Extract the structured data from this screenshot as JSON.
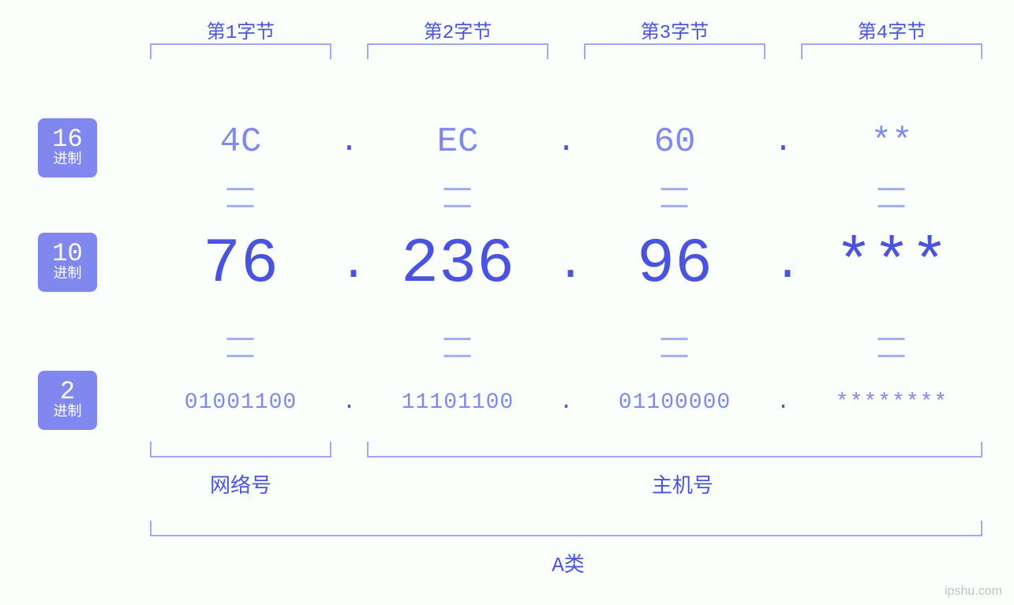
{
  "colors": {
    "background": "#fafffc",
    "primary": "#4a52e0",
    "secondary": "#8088f0",
    "bracket": "#a0a8f0",
    "badge_bg": "#8088f0",
    "badge_text": "#ffffff",
    "watermark": "#c0c0c0"
  },
  "typography": {
    "font_family": "monospace",
    "byte_label_fontsize": 24,
    "hex_fontsize": 44,
    "dec_fontsize": 80,
    "bin_fontsize": 28,
    "badge_number_fontsize": 32,
    "badge_text_fontsize": 18,
    "bottom_label_fontsize": 26,
    "equals_fontsize": 36
  },
  "byte_labels": [
    "第1字节",
    "第2字节",
    "第3字节",
    "第4字节"
  ],
  "rows": {
    "hex": {
      "badge_number": "16",
      "badge_text": "进制",
      "values": [
        "4C",
        "EC",
        "60",
        "**"
      ],
      "separator": "."
    },
    "dec": {
      "badge_number": "10",
      "badge_text": "进制",
      "values": [
        "76",
        "236",
        "96",
        "***"
      ],
      "separator": "."
    },
    "bin": {
      "badge_number": "2",
      "badge_text": "进制",
      "values": [
        "01001100",
        "11101100",
        "01100000",
        "********"
      ],
      "separator": "."
    }
  },
  "equals_symbol": "||",
  "bottom": {
    "network_label": "网络号",
    "network_span_bytes": [
      1
    ],
    "host_label": "主机号",
    "host_span_bytes": [
      2,
      3,
      4
    ],
    "class_label": "A类"
  },
  "watermark": "ipshu.com"
}
